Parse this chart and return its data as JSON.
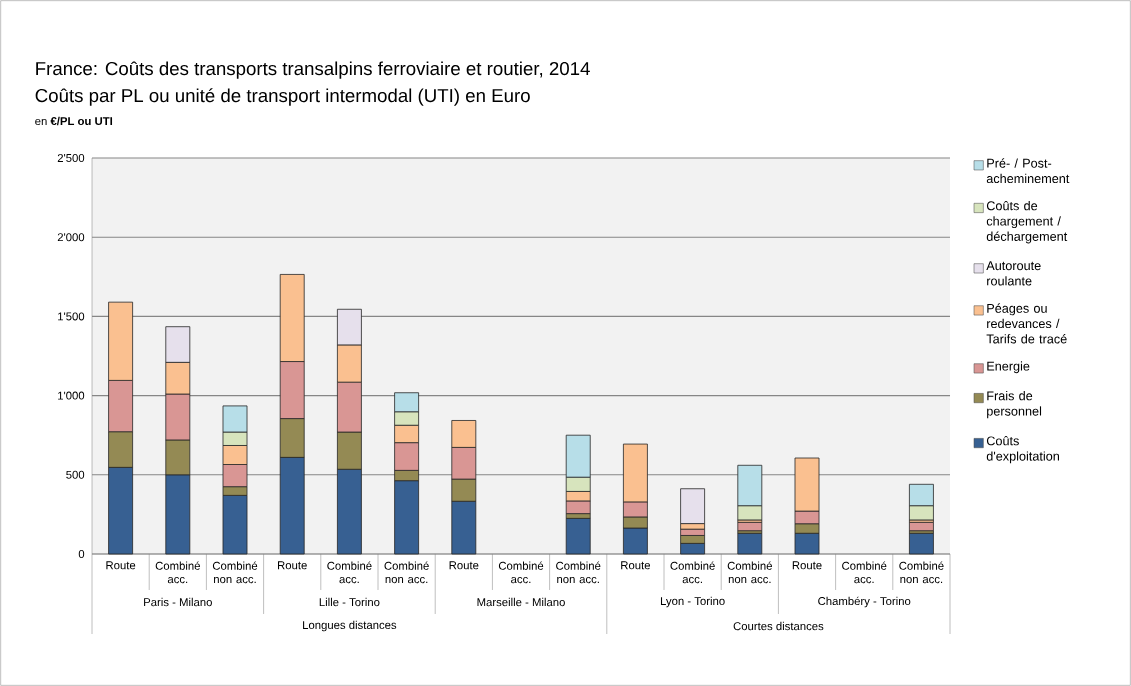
{
  "chart_data": {
    "type": "bar",
    "stacked": true,
    "title": "France: Coûts des transports transalpins ferroviaire et routier, 2014",
    "subtitle": "Coûts par PL ou unité de transport intermodal (UTI) en Euro",
    "ylabel": "en **€/PL ou UTI**",
    "categories": [
      "Route",
      "Combiné acc.",
      "Combiné non acc.",
      "Route",
      "Combiné acc.",
      "Combiné non acc.",
      "Route",
      "Combiné acc.",
      "Combiné non acc.",
      "Route",
      "Combiné acc.",
      "Combiné non acc.",
      "Route",
      "Combiné acc.",
      "Combiné non acc."
    ],
    "annotations": [
      "Paris - Milano",
      "Lille - Torino",
      "Marseille - Milano",
      "Lyon - Torino",
      "Chambéry - Torino",
      "Longues distances",
      "Courtes distances"
    ],
    "series": [
      {
        "name": "Coûts d'exploitation",
        "color": "#376092",
        "values": [
          547,
          500,
          370,
          610,
          535,
          463,
          333,
          null,
          225,
          164,
          67,
          131,
          131,
          null,
          131
        ]
      },
      {
        "name": "Frais de personnel",
        "color": "#948a54",
        "values": [
          225,
          220,
          55,
          245,
          235,
          65,
          140,
          null,
          30,
          70,
          50,
          16,
          60,
          null,
          16
        ]
      },
      {
        "name": "Energie",
        "color": "#d99694",
        "values": [
          324,
          290,
          140,
          360,
          315,
          175,
          200,
          null,
          80,
          95,
          40,
          53,
          80,
          null,
          53
        ]
      },
      {
        "name": "Péages ou redevances / Tarifs de tracé",
        "color": "#fac090",
        "values": [
          494,
          200,
          120,
          550,
          235,
          110,
          170,
          null,
          60,
          365,
          35,
          15,
          335,
          null,
          15
        ]
      },
      {
        "name": "Autoroute roulante",
        "color": "#e6e0ec",
        "values": [
          null,
          225,
          null,
          null,
          225,
          null,
          null,
          null,
          null,
          null,
          220,
          null,
          null,
          null,
          null
        ]
      },
      {
        "name": "Coûts de chargement / déchargement",
        "color": "#d7e4bd",
        "values": [
          null,
          null,
          85,
          null,
          null,
          85,
          null,
          null,
          90,
          null,
          null,
          90,
          null,
          null,
          90
        ]
      },
      {
        "name": "Pré- / Post-acheminement",
        "color": "#b7dee8",
        "values": [
          null,
          null,
          165,
          null,
          null,
          120,
          null,
          null,
          265,
          null,
          null,
          255,
          null,
          null,
          135
        ]
      }
    ],
    "ylim": [
      0,
      2500
    ],
    "yticks": [
      0,
      500,
      {
        "value": 1000,
        "label": "1'000"
      },
      {
        "value": 1500,
        "label": "1'500"
      },
      {
        "value": 2000,
        "label": "2'000"
      },
      {
        "value": 2500,
        "label": "2'500"
      }
    ],
    "grid": "y",
    "legend": "right"
  }
}
